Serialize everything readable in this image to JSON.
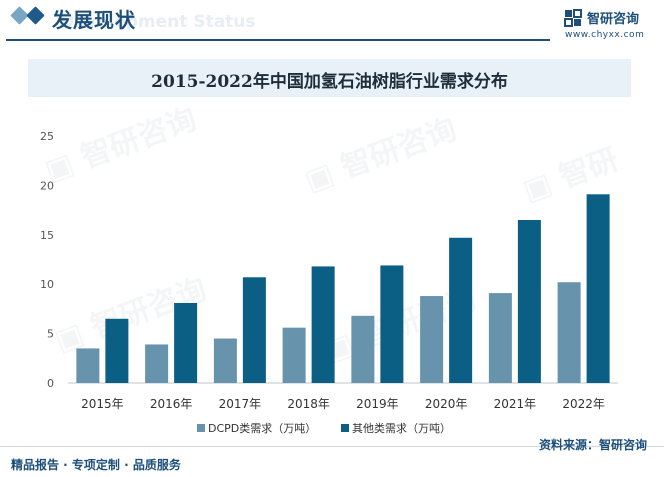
{
  "header": {
    "section_title": "发展现状",
    "watermark_text": "Development Status",
    "brand_name": "智研咨询",
    "brand_url": "www.chyxx.com"
  },
  "colors": {
    "series_1": "#6793ad",
    "series_2": "#0b5f84",
    "accent": "#1d4f7a",
    "title_band": "#e9f1f8"
  },
  "chart_data": {
    "type": "bar",
    "title": "2015-2022年中国加氢石油树脂行业需求分布",
    "categories": [
      "2015年",
      "2016年",
      "2017年",
      "2018年",
      "2019年",
      "2020年",
      "2021年",
      "2022年"
    ],
    "series": [
      {
        "name": "DCPD类需求（万吨）",
        "values": [
          3.5,
          3.9,
          4.5,
          5.6,
          6.8,
          8.8,
          9.1,
          10.2
        ]
      },
      {
        "name": "其他类需求（万吨）",
        "values": [
          6.5,
          8.1,
          10.7,
          11.8,
          11.9,
          14.7,
          16.5,
          19.1
        ]
      }
    ],
    "ylim": [
      0,
      25
    ],
    "yticks": [
      0,
      5,
      10,
      15,
      20,
      25
    ],
    "grid": false,
    "legend_position": "bottom"
  },
  "footer": {
    "left_text": "精品报告 · 专项定制 · 品质服务",
    "source_text": "资料来源：智研咨询"
  }
}
